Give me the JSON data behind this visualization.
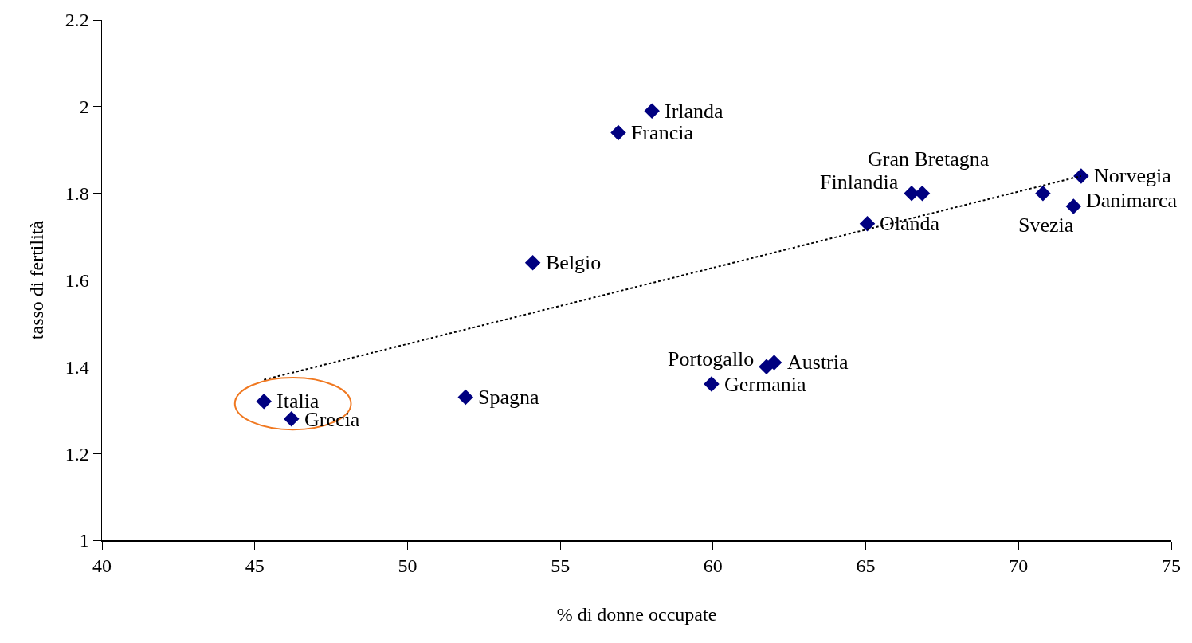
{
  "chart_data": {
    "type": "scatter",
    "xlabel": "% di donne occupate",
    "ylabel": "tasso di fertilità",
    "x": [
      45.3,
      46.2,
      51.9,
      54.1,
      56.9,
      58.0,
      59.95,
      61.75,
      62.0,
      65.05,
      66.5,
      66.85,
      70.8,
      71.8,
      72.05
    ],
    "series": [
      {
        "color": "#000080",
        "marker": "diamond",
        "values": [
          1.32,
          1.28,
          1.33,
          1.64,
          1.94,
          1.99,
          1.36,
          1.4,
          1.41,
          1.73,
          1.8,
          1.8,
          1.8,
          1.77,
          1.84
        ]
      },
      {
        "type": "line",
        "color": "#000000",
        "line_style": "dotted",
        "marker": "none",
        "x": [
          45.3,
          72.05
        ],
        "values": [
          1.37,
          1.84
        ]
      }
    ],
    "annotations": [
      {
        "text": "Italia",
        "x": 45.3,
        "y": 1.32
      },
      {
        "text": "Grecia",
        "x": 46.2,
        "y": 1.28
      },
      {
        "text": "Spagna",
        "x": 51.9,
        "y": 1.33
      },
      {
        "text": "Belgio",
        "x": 54.1,
        "y": 1.64
      },
      {
        "text": "Francia",
        "x": 56.9,
        "y": 1.94
      },
      {
        "text": "Irlanda",
        "x": 58.0,
        "y": 1.99
      },
      {
        "text": "Germania",
        "x": 59.95,
        "y": 1.36
      },
      {
        "text": "Portogallo",
        "x": 61.75,
        "y": 1.4
      },
      {
        "text": "Austria",
        "x": 62.0,
        "y": 1.41
      },
      {
        "text": "Olanda",
        "x": 65.05,
        "y": 1.73
      },
      {
        "text": "Finlandia",
        "x": 66.5,
        "y": 1.8
      },
      {
        "text": "Gran Bretagna",
        "x": 66.85,
        "y": 1.8
      },
      {
        "text": "Svezia",
        "x": 70.8,
        "y": 1.8
      },
      {
        "text": "Danimarca",
        "x": 71.8,
        "y": 1.77
      },
      {
        "text": "Norvegia",
        "x": 72.05,
        "y": 1.84
      }
    ],
    "xlim": [
      40,
      75
    ],
    "xticks": [
      40,
      45,
      50,
      55,
      60,
      65,
      70,
      75
    ],
    "ylim": [
      1,
      2.2
    ],
    "yticks": [
      1,
      1.2,
      1.4,
      1.6,
      1.8,
      2,
      2.2
    ],
    "grid": false
  }
}
